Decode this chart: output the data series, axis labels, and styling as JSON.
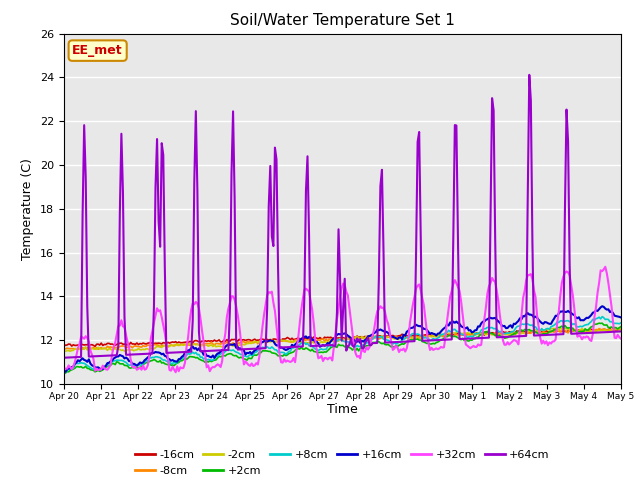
{
  "title": "Soil/Water Temperature Set 1",
  "xlabel": "Time",
  "ylabel": "Temperature (C)",
  "ylim": [
    10,
    26
  ],
  "xlim": [
    0,
    15
  ],
  "tick_labels": [
    "Apr 20",
    "Apr 21",
    "Apr 22",
    "Apr 23",
    "Apr 24",
    "Apr 25",
    "Apr 26",
    "Apr 27",
    "Apr 28",
    "Apr 29",
    "Apr 30",
    "May 1",
    "May 2",
    "May 3",
    "May 4",
    "May 5"
  ],
  "bg_color": "#e8e8e8",
  "watermark_text": "EE_met",
  "watermark_bg": "#ffffcc",
  "watermark_border": "#cc8800",
  "watermark_text_color": "#cc0000",
  "series_order": [
    "-16cm",
    "-8cm",
    "-2cm",
    "+2cm",
    "+8cm",
    "+16cm",
    "+32cm",
    "+64cm"
  ],
  "series": {
    "-16cm": {
      "color": "#cc0000",
      "lw": 1.2
    },
    "-8cm": {
      "color": "#ff8800",
      "lw": 1.2
    },
    "-2cm": {
      "color": "#cccc00",
      "lw": 1.2
    },
    "+2cm": {
      "color": "#00bb00",
      "lw": 1.2
    },
    "+8cm": {
      "color": "#00cccc",
      "lw": 1.2
    },
    "+16cm": {
      "color": "#0000cc",
      "lw": 1.5
    },
    "+32cm": {
      "color": "#ff44ff",
      "lw": 1.5
    },
    "+64cm": {
      "color": "#9900cc",
      "lw": 1.5
    }
  },
  "legend_row1": [
    "-16cm",
    "-8cm",
    "-2cm",
    "+2cm",
    "+8cm",
    "+16cm"
  ],
  "legend_row2": [
    "+32cm",
    "+64cm"
  ]
}
